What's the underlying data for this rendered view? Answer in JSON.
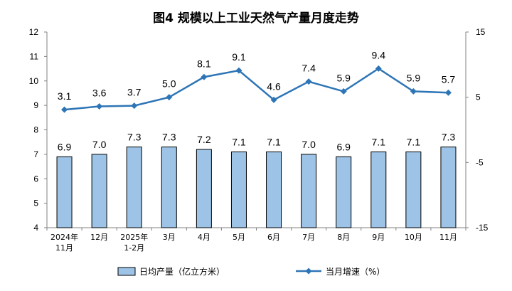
{
  "chart_data": {
    "title": "图4  规模以上工业天然气产量月度走势",
    "categories": [
      [
        "2024年",
        "11月"
      ],
      [
        "12月"
      ],
      [
        "2025年",
        "1-2月"
      ],
      [
        "3月"
      ],
      [
        "4月"
      ],
      [
        "5月"
      ],
      [
        "6月"
      ],
      [
        "7月"
      ],
      [
        "8月"
      ],
      [
        "9月"
      ],
      [
        "10月"
      ],
      [
        "11月"
      ]
    ],
    "series": [
      {
        "name": "日均产量（亿立方米）",
        "type": "bar",
        "axis": "left",
        "color": "#9DC3E6",
        "stroke": "#000000",
        "values": [
          6.9,
          7.0,
          7.3,
          7.3,
          7.2,
          7.1,
          7.1,
          7.0,
          6.9,
          7.1,
          7.1,
          7.3
        ],
        "labels": [
          "6.9",
          "7.0",
          "7.3",
          "7.3",
          "7.2",
          "7.1",
          "7.1",
          "7.0",
          "6.9",
          "7.1",
          "7.1",
          "7.3"
        ]
      },
      {
        "name": "当月增速（%）",
        "type": "line",
        "axis": "right",
        "color": "#2E75B6",
        "values": [
          3.1,
          3.6,
          3.7,
          5.0,
          8.1,
          9.1,
          4.6,
          7.4,
          5.9,
          9.4,
          5.9,
          5.7
        ],
        "labels": [
          "3.1",
          "3.6",
          "3.7",
          "5.0",
          "8.1",
          "9.1",
          "4.6",
          "7.4",
          "5.9",
          "9.4",
          "5.9",
          "5.7"
        ]
      }
    ],
    "y_left": {
      "min": 4,
      "max": 12,
      "ticks": [
        "4",
        "5",
        "6",
        "7",
        "8",
        "9",
        "10",
        "11",
        "12"
      ]
    },
    "y_right": {
      "min": -15,
      "max": 15,
      "ticks": [
        "-15",
        "-5",
        "5",
        "15"
      ]
    },
    "grid": false,
    "legend_position": "bottom"
  }
}
